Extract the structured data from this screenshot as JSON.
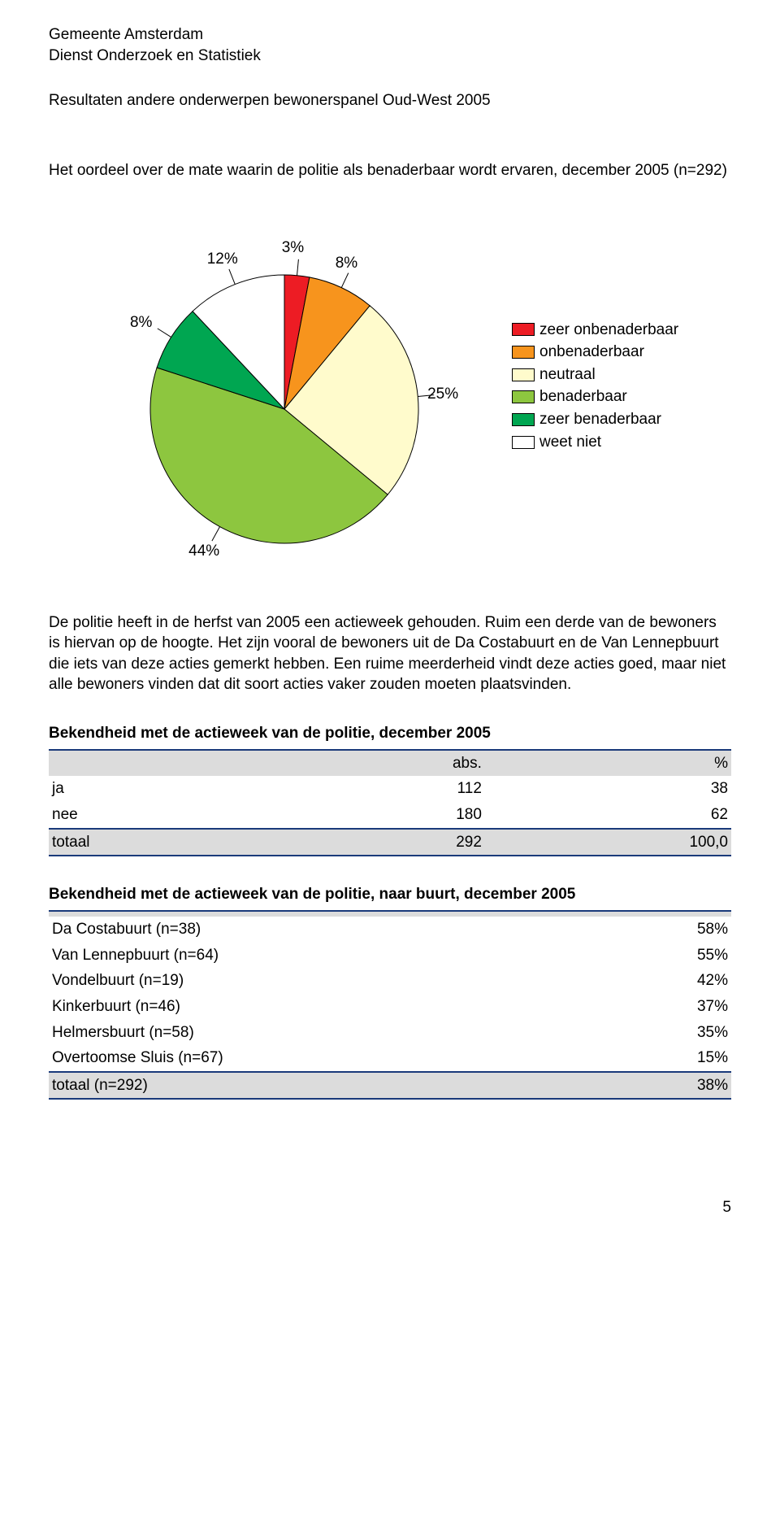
{
  "header": {
    "org1": "Gemeente Amsterdam",
    "org2": "Dienst Onderzoek en Statistiek",
    "doc_title": "Resultaten andere onderwerpen bewonerspanel Oud-West 2005"
  },
  "chart": {
    "type": "pie",
    "title": "Het oordeel over de mate waarin de politie als benaderbaar wordt ervaren, december 2005 (n=292)",
    "slices": [
      {
        "label": "zeer onbenaderbaar",
        "value": 3,
        "pct_label": "3%",
        "color": "#ed1c24"
      },
      {
        "label": "onbenaderbaar",
        "value": 8,
        "pct_label": "8%",
        "color": "#f7941d"
      },
      {
        "label": "neutraal",
        "value": 25,
        "pct_label": "25%",
        "color": "#fffbcc"
      },
      {
        "label": "benaderbaar",
        "value": 44,
        "pct_label": "44%",
        "color": "#8dc63f"
      },
      {
        "label": "zeer benaderbaar",
        "value": 8,
        "pct_label": "8%",
        "color": "#00a651"
      },
      {
        "label": "weet niet",
        "value": 12,
        "pct_label": "12%",
        "color": "#ffffff"
      }
    ],
    "background_color": "#ffffff",
    "border_color": "#000000",
    "radius": 165,
    "start_angle_deg": -90
  },
  "paragraph": "De politie heeft in de herfst van 2005 een actieweek gehouden. Ruim een derde van de bewoners is hiervan op de hoogte. Het zijn vooral de bewoners uit de Da Costabuurt en de Van Lennepbuurt die iets van deze acties gemerkt hebben. Een ruime meerderheid vindt deze acties goed, maar niet alle bewoners vinden dat dit soort acties vaker zouden moeten plaatsvinden.",
  "table1": {
    "title": "Bekendheid met de actieweek van de politie, december 2005",
    "col_headers": [
      "",
      "abs.",
      "%"
    ],
    "rows": [
      [
        "ja",
        "112",
        "38"
      ],
      [
        "nee",
        "180",
        "62"
      ]
    ],
    "total_row": [
      "totaal",
      "292",
      "100,0"
    ]
  },
  "table2": {
    "title": "Bekendheid met de actieweek van de politie, naar buurt, december 2005",
    "rows": [
      [
        "Da Costabuurt (n=38)",
        "58%"
      ],
      [
        "Van Lennepbuurt (n=64)",
        "55%"
      ],
      [
        "Vondelbuurt (n=19)",
        "42%"
      ],
      [
        "Kinkerbuurt (n=46)",
        "37%"
      ],
      [
        "Helmersbuurt (n=58)",
        "35%"
      ],
      [
        "Overtoomse Sluis (n=67)",
        "15%"
      ]
    ],
    "total_row": [
      "totaal (n=292)",
      "38%"
    ]
  },
  "page_number": "5"
}
